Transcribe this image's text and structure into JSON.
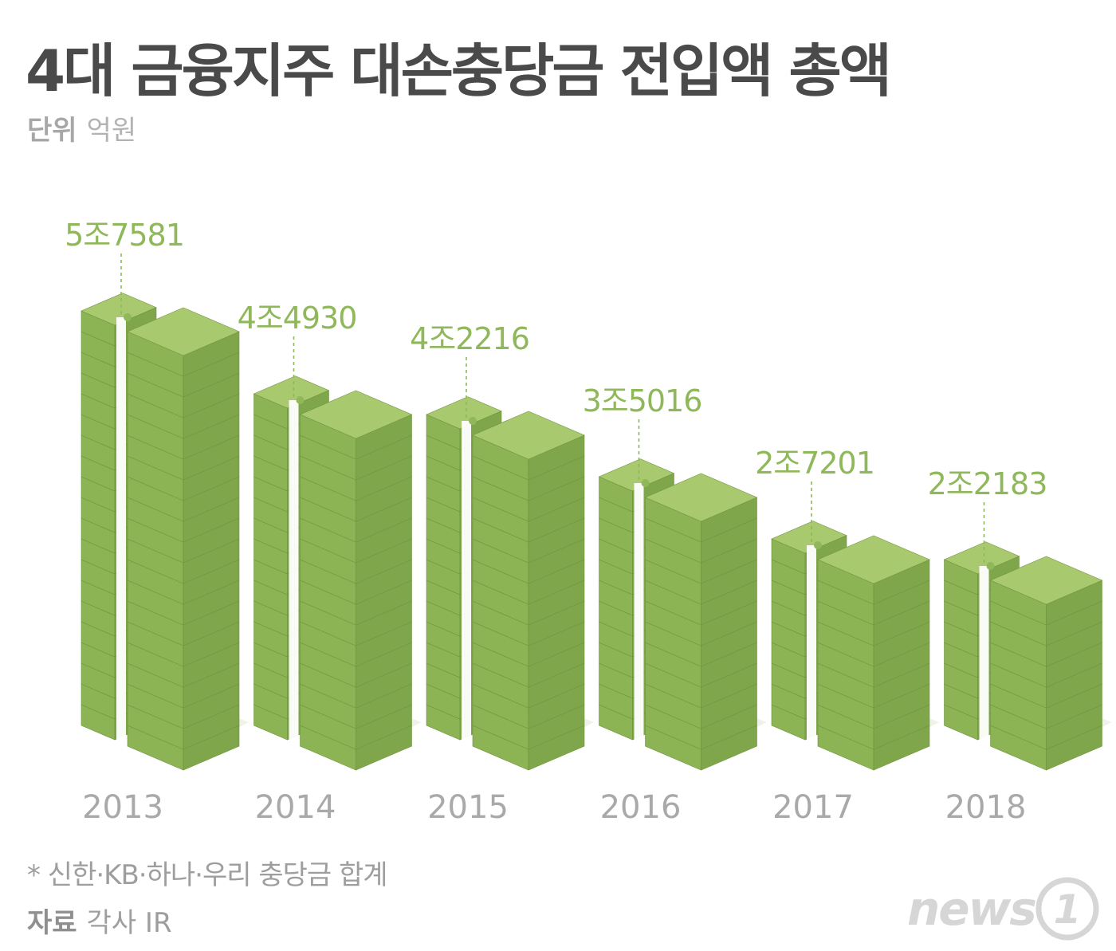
{
  "title": "4대 금융지주 대손충당금 전입액 총액",
  "unit": {
    "label": "단위",
    "value": "억원"
  },
  "chart_data": {
    "type": "bar",
    "title": "4대 금융지주 대손충당금 전입액 총액",
    "unit": "억원",
    "categories": [
      "2013",
      "2014",
      "2015",
      "2016",
      "2017",
      "2018"
    ],
    "values": [
      57581,
      44930,
      42216,
      35016,
      27201,
      22183
    ],
    "data_labels": [
      "5조7581",
      "4조4930",
      "4조2216",
      "3조5016",
      "2조7201",
      "2조2183"
    ],
    "ylim": [
      0,
      60000
    ],
    "grid": false,
    "bar_color": "#9bbe60",
    "label_color": "#8fb85a",
    "category_color": "#a9a9a9"
  },
  "footnote": "* 신한·KB·하나·우리 충당금 합계",
  "source": {
    "label": "자료",
    "value": "각사 IR"
  },
  "logo": {
    "text": "news",
    "mark": "1"
  }
}
